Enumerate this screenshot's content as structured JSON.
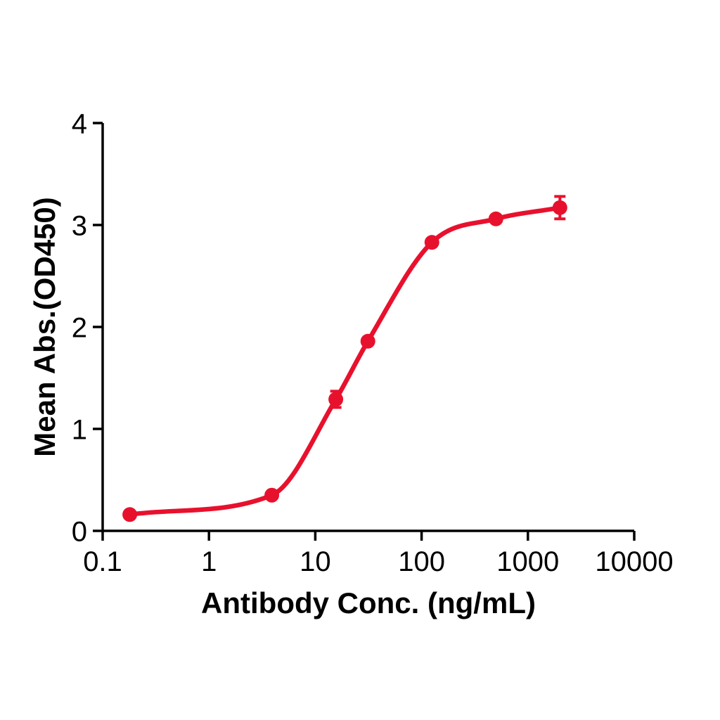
{
  "chart_data": {
    "type": "scatter",
    "subtype": "sigmoidal-dose-response-fit",
    "title": "",
    "xlabel": "Antibody Conc. (ng/mL)",
    "ylabel": "Mean Abs.(OD450)",
    "x_scale": "log10",
    "y_scale": "linear",
    "xlim": [
      0.1,
      10000
    ],
    "ylim": [
      0,
      4
    ],
    "x_ticks": [
      0.1,
      1,
      10,
      100,
      1000,
      10000
    ],
    "x_tick_labels": [
      "0.1",
      "1",
      "10",
      "100",
      "1000",
      "10000"
    ],
    "y_ticks": [
      0,
      1,
      2,
      3,
      4
    ],
    "y_tick_labels": [
      "0",
      "1",
      "2",
      "3",
      "4"
    ],
    "grid": false,
    "legend": null,
    "series": [
      {
        "name": "",
        "marker": "circle",
        "points": [
          {
            "x": 0.18,
            "y": 0.16,
            "err": 0
          },
          {
            "x": 3.9,
            "y": 0.35,
            "err": 0
          },
          {
            "x": 15.6,
            "y": 1.29,
            "err": 0.08
          },
          {
            "x": 31.25,
            "y": 1.86,
            "err": 0
          },
          {
            "x": 125,
            "y": 2.83,
            "err": 0
          },
          {
            "x": 500,
            "y": 3.06,
            "err": 0
          },
          {
            "x": 2000,
            "y": 3.17,
            "err": 0.11
          }
        ]
      }
    ],
    "colors": {
      "curve": "#E8112D",
      "marker": "#E8112D",
      "error_bar": "#E8112D",
      "axis": "#000000",
      "background": "#FFFFFF"
    }
  }
}
